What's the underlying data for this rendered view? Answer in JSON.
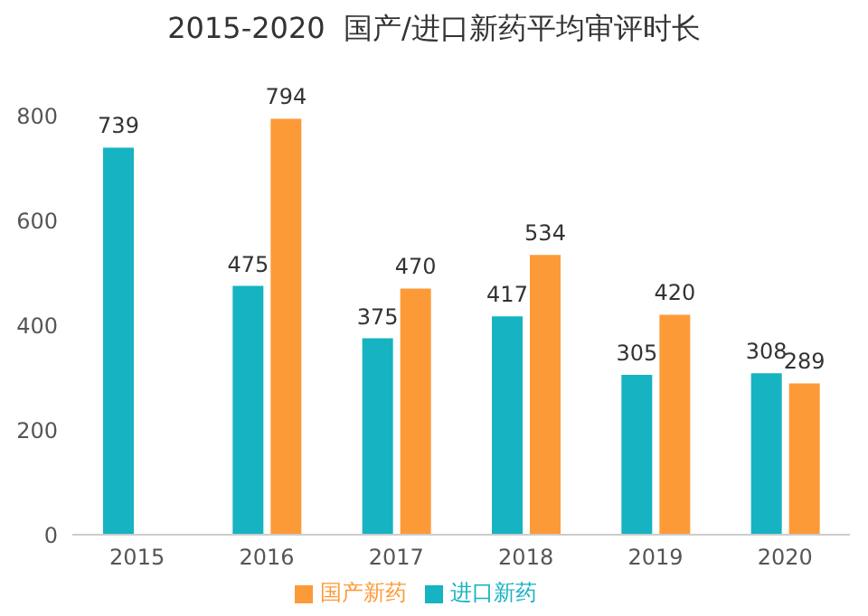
{
  "chart_data": {
    "type": "bar",
    "title": "2015-2020  国产/进口新药平均审评时长",
    "categories": [
      "2015",
      "2016",
      "2017",
      "2018",
      "2019",
      "2020"
    ],
    "series": [
      {
        "name": "进口新药",
        "color": "#16b3c2",
        "values": [
          739,
          475,
          375,
          417,
          305,
          308
        ]
      },
      {
        "name": "国产新药",
        "color": "#fd9a38",
        "values": [
          null,
          794,
          470,
          534,
          420,
          289
        ]
      }
    ],
    "ylim": [
      0,
      800
    ],
    "yticks": [
      0,
      200,
      400,
      600,
      800
    ],
    "grid": false,
    "legend": "bottom",
    "data_labels": true
  }
}
